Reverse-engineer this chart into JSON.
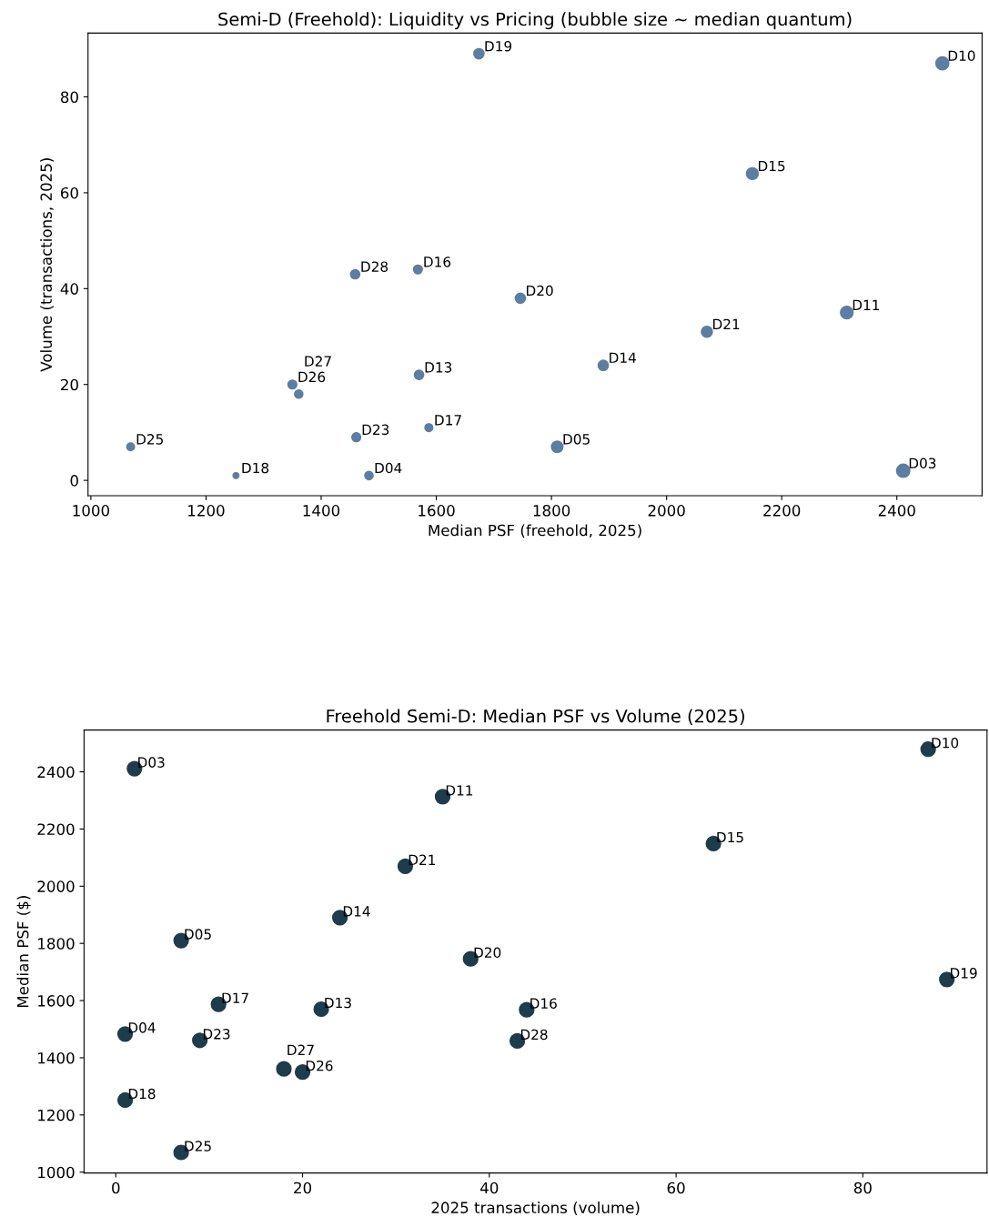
{
  "chart_data": [
    {
      "type": "bubble",
      "title": "Semi-D (Freehold): Liquidity vs Pricing (bubble size ~ median quantum)",
      "xlabel": "Median PSF (freehold, 2025)",
      "ylabel": "Volume (transactions, 2025)",
      "xlim": [
        995,
        2548
      ],
      "ylim": [
        -3.2,
        93.3
      ],
      "xticks": [
        1000,
        1200,
        1400,
        1600,
        1800,
        2000,
        2200,
        2400
      ],
      "yticks": [
        0,
        20,
        40,
        60,
        80
      ],
      "grid": false,
      "legend": false,
      "series": [
        {
          "color": "#5b7ea5",
          "x": [
            1674,
            2479,
            2149,
            1459,
            1568,
            1746,
            2313,
            2070,
            1890,
            1570,
            1350,
            1361,
            1461,
            1587,
            1069,
            1810,
            1252,
            1483,
            2411
          ],
          "values": [
            89,
            87,
            64,
            43,
            44,
            38,
            35,
            31,
            24,
            22,
            20,
            18,
            9,
            11,
            7,
            7,
            1,
            1,
            2
          ],
          "sizes": [
            0.6,
            0.95,
            0.8,
            0.5,
            0.45,
            0.6,
            0.9,
            0.7,
            0.6,
            0.5,
            0.45,
            0.4,
            0.45,
            0.35,
            0.35,
            0.75,
            0.2,
            0.4,
            1
          ]
        }
      ],
      "annotations": [
        {
          "text": "D19",
          "x": 1674,
          "y": 89
        },
        {
          "text": "D10",
          "x": 2479,
          "y": 87
        },
        {
          "text": "D15",
          "x": 2149,
          "y": 64
        },
        {
          "text": "D28",
          "x": 1459,
          "y": 43
        },
        {
          "text": "D16",
          "x": 1568,
          "y": 44
        },
        {
          "text": "D20",
          "x": 1746,
          "y": 38
        },
        {
          "text": "D11",
          "x": 2313,
          "y": 35
        },
        {
          "text": "D21",
          "x": 2070,
          "y": 31
        },
        {
          "text": "D14",
          "x": 1890,
          "y": 24
        },
        {
          "text": "D13",
          "x": 1570,
          "y": 22
        },
        {
          "text": "D26",
          "x": 1350,
          "y": 20
        },
        {
          "text": "D27",
          "x": 1361,
          "y": 18
        },
        {
          "text": "D23",
          "x": 1461,
          "y": 9
        },
        {
          "text": "D17",
          "x": 1587,
          "y": 11
        },
        {
          "text": "D25",
          "x": 1069,
          "y": 7
        },
        {
          "text": "D05",
          "x": 1810,
          "y": 7
        },
        {
          "text": "D18",
          "x": 1252,
          "y": 1
        },
        {
          "text": "D04",
          "x": 1483,
          "y": 1
        },
        {
          "text": "D03",
          "x": 2411,
          "y": 2
        }
      ]
    },
    {
      "type": "scatter",
      "title": "Freehold Semi-D: Median PSF vs Volume (2025)",
      "xlabel": "2025 transactions (volume)",
      "ylabel": "Median PSF ($)",
      "xlim": [
        -3.4,
        93.3
      ],
      "ylim": [
        997,
        2546
      ],
      "xticks": [
        0,
        20,
        40,
        60,
        80
      ],
      "yticks": [
        1000,
        1200,
        1400,
        1600,
        1800,
        2000,
        2200,
        2400
      ],
      "grid": false,
      "legend": false,
      "marker": "circle",
      "series": [
        {
          "color": "#1d3d4c",
          "x": [
            89,
            87,
            64,
            43,
            44,
            38,
            35,
            31,
            24,
            22,
            20,
            18,
            9,
            11,
            7,
            7,
            1,
            1,
            2
          ],
          "values": [
            1674,
            2479,
            2149,
            1459,
            1568,
            1746,
            2313,
            2070,
            1890,
            1570,
            1350,
            1361,
            1461,
            1587,
            1069,
            1810,
            1252,
            1483,
            2411
          ]
        }
      ],
      "annotations": [
        {
          "text": "D19",
          "x": 89,
          "y": 1674
        },
        {
          "text": "D10",
          "x": 87,
          "y": 2479
        },
        {
          "text": "D15",
          "x": 64,
          "y": 2149
        },
        {
          "text": "D28",
          "x": 43,
          "y": 1459
        },
        {
          "text": "D16",
          "x": 44,
          "y": 1568
        },
        {
          "text": "D20",
          "x": 38,
          "y": 1746
        },
        {
          "text": "D11",
          "x": 35,
          "y": 2313
        },
        {
          "text": "D21",
          "x": 31,
          "y": 2070
        },
        {
          "text": "D14",
          "x": 24,
          "y": 1890
        },
        {
          "text": "D13",
          "x": 22,
          "y": 1570
        },
        {
          "text": "D26",
          "x": 20,
          "y": 1350
        },
        {
          "text": "D27",
          "x": 18,
          "y": 1361
        },
        {
          "text": "D23",
          "x": 9,
          "y": 1461
        },
        {
          "text": "D17",
          "x": 11,
          "y": 1587
        },
        {
          "text": "D25",
          "x": 7,
          "y": 1069
        },
        {
          "text": "D05",
          "x": 7,
          "y": 1810
        },
        {
          "text": "D18",
          "x": 1,
          "y": 1252
        },
        {
          "text": "D04",
          "x": 1,
          "y": 1483
        },
        {
          "text": "D03",
          "x": 2,
          "y": 2411
        }
      ]
    }
  ]
}
